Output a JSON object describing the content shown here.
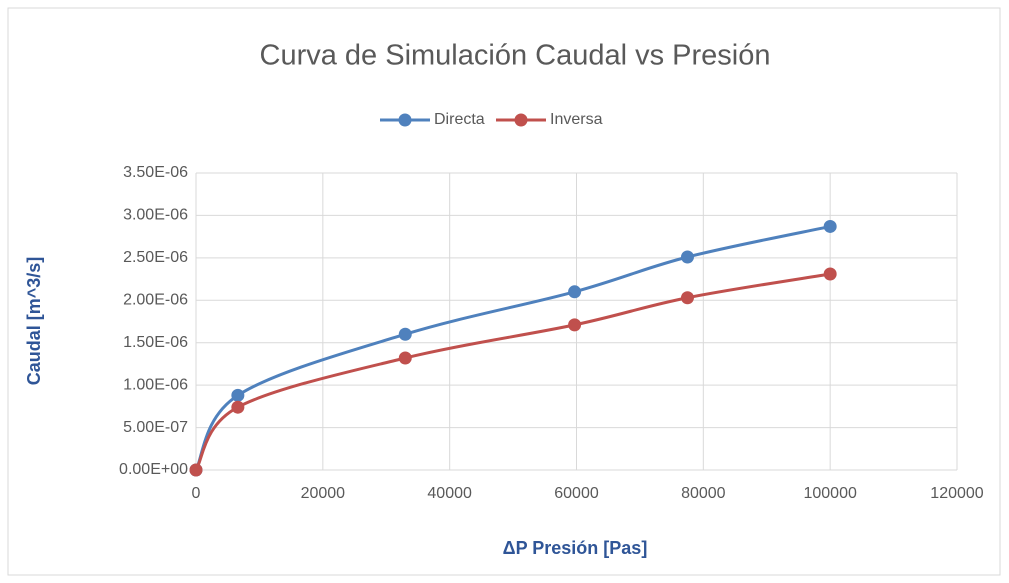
{
  "chart_data": {
    "type": "scatter",
    "title": "Curva de Simulación Caudal vs Presión",
    "x_label": "ΔP Presión [Pas]",
    "y_label": "Caudal [m^3/s]",
    "x": [
      0,
      6600,
      33000,
      59700,
      77500,
      100000
    ],
    "series": [
      {
        "name": "Directa",
        "color": "#4f81bd",
        "values": [
          0,
          8.8e-07,
          1.6e-06,
          2.1e-06,
          2.51e-06,
          2.87e-06
        ]
      },
      {
        "name": "Inversa",
        "color": "#c0504d",
        "values": [
          0,
          7.4e-07,
          1.32e-06,
          1.71e-06,
          2.03e-06,
          2.31e-06
        ]
      }
    ],
    "xlim": [
      0,
      120000
    ],
    "xticks": [
      0,
      20000,
      40000,
      60000,
      80000,
      100000,
      120000
    ],
    "ylim": [
      0,
      3.5e-06
    ],
    "yticks": [
      {
        "value": 0,
        "label": "0.00E+00"
      },
      {
        "value": 5e-07,
        "label": "5.00E-07"
      },
      {
        "value": 1e-06,
        "label": "1.00E-06"
      },
      {
        "value": 1.5e-06,
        "label": "1.50E-06"
      },
      {
        "value": 2e-06,
        "label": "2.00E-06"
      },
      {
        "value": 2.5e-06,
        "label": "2.50E-06"
      },
      {
        "value": 3e-06,
        "label": "3.00E-06"
      },
      {
        "value": 3.5e-06,
        "label": "3.50E-06"
      }
    ],
    "grid": true,
    "smooth": true,
    "legend": "top"
  }
}
